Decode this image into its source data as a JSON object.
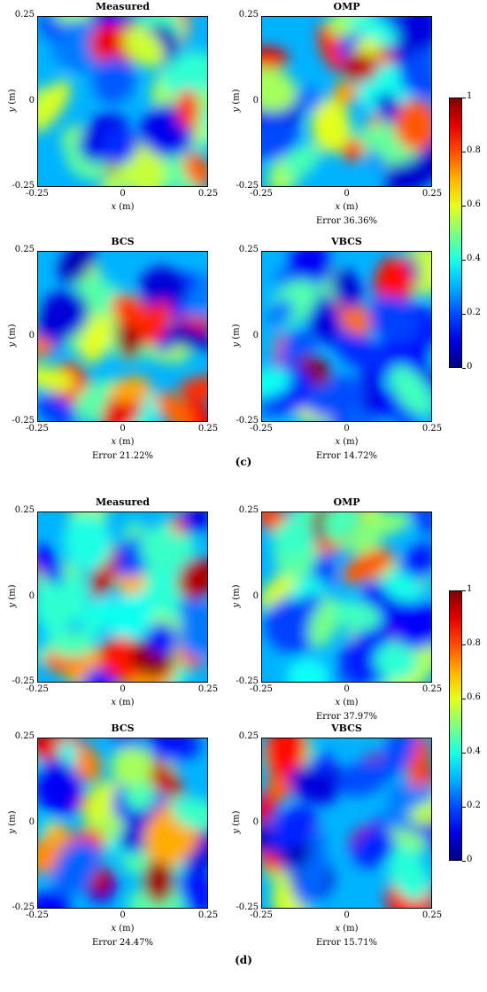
{
  "figures": [
    {
      "label": "(c)",
      "colorbar": {
        "ticks": [
          "0",
          "0.2",
          "0.4",
          "0.6",
          "0.8",
          "1"
        ],
        "vmin": 0,
        "vmax": 1
      },
      "panels": [
        {
          "title": "Measured",
          "error": ""
        },
        {
          "title": "OMP",
          "error": "Error 36.36%"
        },
        {
          "title": "BCS",
          "error": "Error 21.22%"
        },
        {
          "title": "VBCS",
          "error": "Error 14.72%"
        }
      ]
    },
    {
      "label": "(d)",
      "colorbar": {
        "ticks": [
          "0",
          "0.2",
          "0.4",
          "0.6",
          "0.8",
          "1"
        ],
        "vmin": 0,
        "vmax": 1
      },
      "panels": [
        {
          "title": "Measured",
          "error": ""
        },
        {
          "title": "OMP",
          "error": "Error 37.97%"
        },
        {
          "title": "BCS",
          "error": "Error 24.47%"
        },
        {
          "title": "VBCS",
          "error": "Error 15.71%"
        }
      ]
    }
  ],
  "axes": {
    "x_ticks": [
      "-0.25",
      "0",
      "0.25"
    ],
    "y_ticks": [
      "0.25",
      "0",
      "-0.25"
    ],
    "x_label_var": "x",
    "x_label_unit": " (m)",
    "y_label_var": "y",
    "y_label_unit": " (m)"
  },
  "chart_data": [
    {
      "type": "heatmap",
      "title": "Measured",
      "xlabel": "x (m)",
      "ylabel": "y (m)",
      "xlim": [
        -0.25,
        0.25
      ],
      "ylim": [
        -0.25,
        0.25
      ],
      "clim": [
        0,
        1
      ]
    },
    {
      "type": "heatmap",
      "title": "OMP",
      "xlabel": "x (m)",
      "ylabel": "y (m)",
      "xlim": [
        -0.25,
        0.25
      ],
      "ylim": [
        -0.25,
        0.25
      ],
      "clim": [
        0,
        1
      ],
      "annotation": "Error 36.36%"
    },
    {
      "type": "heatmap",
      "title": "BCS",
      "xlabel": "x (m)",
      "ylabel": "y (m)",
      "xlim": [
        -0.25,
        0.25
      ],
      "ylim": [
        -0.25,
        0.25
      ],
      "clim": [
        0,
        1
      ],
      "annotation": "Error 21.22%"
    },
    {
      "type": "heatmap",
      "title": "VBCS",
      "xlabel": "x (m)",
      "ylabel": "y (m)",
      "xlim": [
        -0.25,
        0.25
      ],
      "ylim": [
        -0.25,
        0.25
      ],
      "clim": [
        0,
        1
      ],
      "annotation": "Error 14.72%"
    },
    {
      "type": "heatmap",
      "title": "Measured",
      "xlabel": "x (m)",
      "ylabel": "y (m)",
      "xlim": [
        -0.25,
        0.25
      ],
      "ylim": [
        -0.25,
        0.25
      ],
      "clim": [
        0,
        1
      ]
    },
    {
      "type": "heatmap",
      "title": "OMP",
      "xlabel": "x (m)",
      "ylabel": "y (m)",
      "xlim": [
        -0.25,
        0.25
      ],
      "ylim": [
        -0.25,
        0.25
      ],
      "clim": [
        0,
        1
      ],
      "annotation": "Error 37.97%"
    },
    {
      "type": "heatmap",
      "title": "BCS",
      "xlabel": "x (m)",
      "ylabel": "y (m)",
      "xlim": [
        -0.25,
        0.25
      ],
      "ylim": [
        -0.25,
        0.25
      ],
      "clim": [
        0,
        1
      ],
      "annotation": "Error 24.47%"
    },
    {
      "type": "heatmap",
      "title": "VBCS",
      "xlabel": "x (m)",
      "ylabel": "y (m)",
      "xlim": [
        -0.25,
        0.25
      ],
      "ylim": [
        -0.25,
        0.25
      ],
      "clim": [
        0,
        1
      ],
      "annotation": "Error 15.71%"
    }
  ]
}
